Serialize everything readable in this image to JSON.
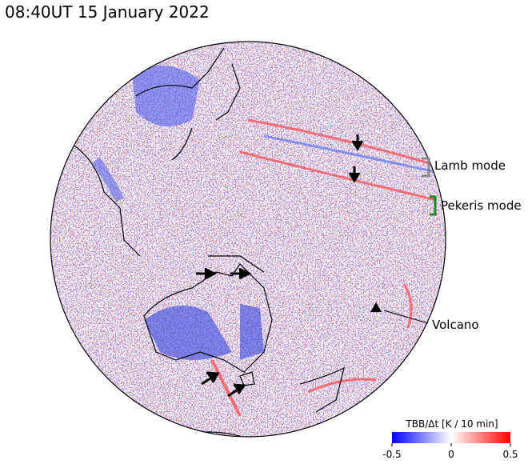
{
  "title": "08:40UT 15 January 2022",
  "annotations": {
    "lamb": "Lamb mode",
    "pekeris": "Pekeris mode",
    "volcano": "Volcano"
  },
  "colorbar": {
    "label": "TBB/Δt [K / 10 min]",
    "lim": [
      -0.5,
      0.5
    ],
    "ticks": [
      -0.5,
      0,
      0.5
    ]
  }
}
